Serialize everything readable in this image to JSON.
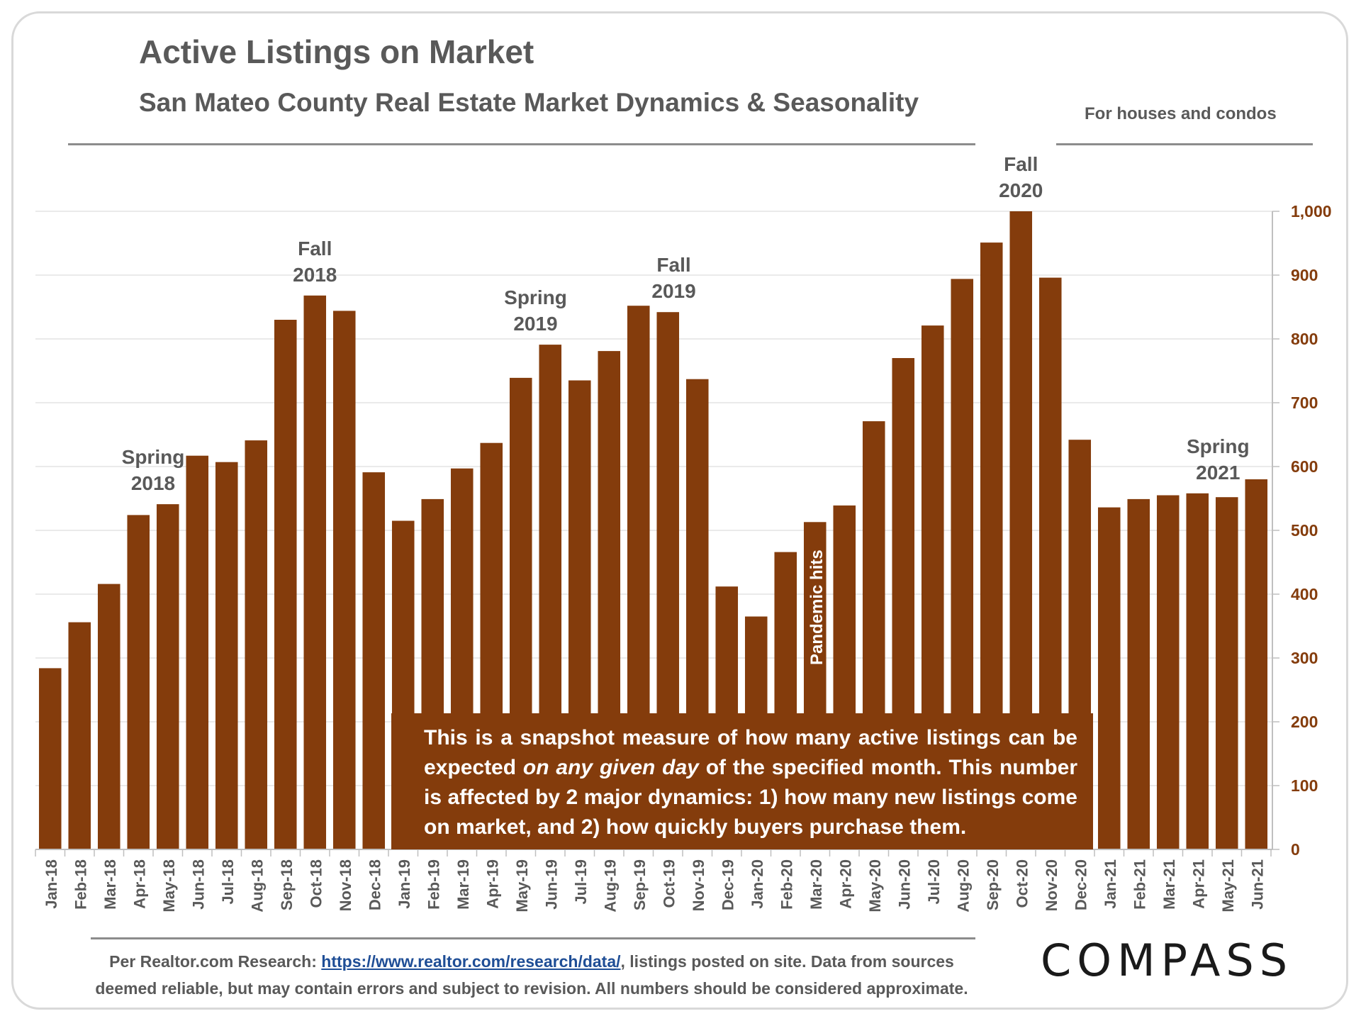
{
  "header": {
    "title": "Active Listings on Market",
    "subtitle": "San Mateo County Real Estate Market Dynamics & Seasonality",
    "scope_note": "For houses and condos"
  },
  "chart_data": {
    "type": "bar",
    "title": "Active Listings on Market",
    "categories": [
      "Jan-18",
      "Feb-18",
      "Mar-18",
      "Apr-18",
      "May-18",
      "Jun-18",
      "Jul-18",
      "Aug-18",
      "Sep-18",
      "Oct-18",
      "Nov-18",
      "Dec-18",
      "Jan-19",
      "Feb-19",
      "Mar-19",
      "Apr-19",
      "May-19",
      "Jun-19",
      "Jul-19",
      "Aug-19",
      "Sep-19",
      "Oct-19",
      "Nov-19",
      "Dec-19",
      "Jan-20",
      "Feb-20",
      "Mar-20",
      "Apr-20",
      "May-20",
      "Jun-20",
      "Jul-20",
      "Aug-20",
      "Sep-20",
      "Oct-20",
      "Nov-20",
      "Dec-20",
      "Jan-21",
      "Feb-21",
      "Mar-21",
      "Apr-21",
      "May-21",
      "Jun-21"
    ],
    "values": [
      284,
      356,
      416,
      524,
      541,
      617,
      607,
      641,
      830,
      868,
      844,
      591,
      515,
      549,
      597,
      637,
      739,
      791,
      735,
      781,
      852,
      842,
      737,
      412,
      365,
      466,
      513,
      539,
      671,
      770,
      821,
      894,
      951,
      1000,
      896,
      642,
      536,
      549,
      555,
      558,
      552,
      580
    ],
    "ylim": [
      0,
      1000
    ],
    "yticks": [
      "0",
      "100",
      "200",
      "300",
      "400",
      "500",
      "600",
      "700",
      "800",
      "900",
      "1,000"
    ],
    "y_axis_side": "right",
    "bar_color": "#843c0c",
    "annotations": [
      {
        "text": [
          "Spring",
          "2018"
        ],
        "index": 3.5
      },
      {
        "text": [
          "Fall",
          "2018"
        ],
        "index": 9
      },
      {
        "text": [
          "Spring",
          "2019"
        ],
        "index": 16.5
      },
      {
        "text": [
          "Fall",
          "2019"
        ],
        "index": 21.2
      },
      {
        "text": [
          "Fall",
          "2020"
        ],
        "index": 33
      },
      {
        "text": [
          "Spring",
          "2021"
        ],
        "index": 39.7
      }
    ],
    "vertical_annotation": {
      "text": "Pandemic hits",
      "index": 26
    }
  },
  "callout": {
    "part1": "This is a snapshot measure of how many active listings can be expected ",
    "emph": "on any given day",
    "part2": " of the specified month. This number is affected by 2 major dynamics: 1) how many new listings come on market, and 2) how quickly buyers purchase them."
  },
  "footer": {
    "prefix": "Per Realtor.com Research:  ",
    "link": "https://www.realtor.com/research/data/",
    "line1_suffix": ", listings posted on site. Data from sources",
    "line2": "deemed reliable, but may contain errors and subject to revision. All numbers should be considered approximate."
  },
  "brand": {
    "logo": "COMPASS"
  }
}
